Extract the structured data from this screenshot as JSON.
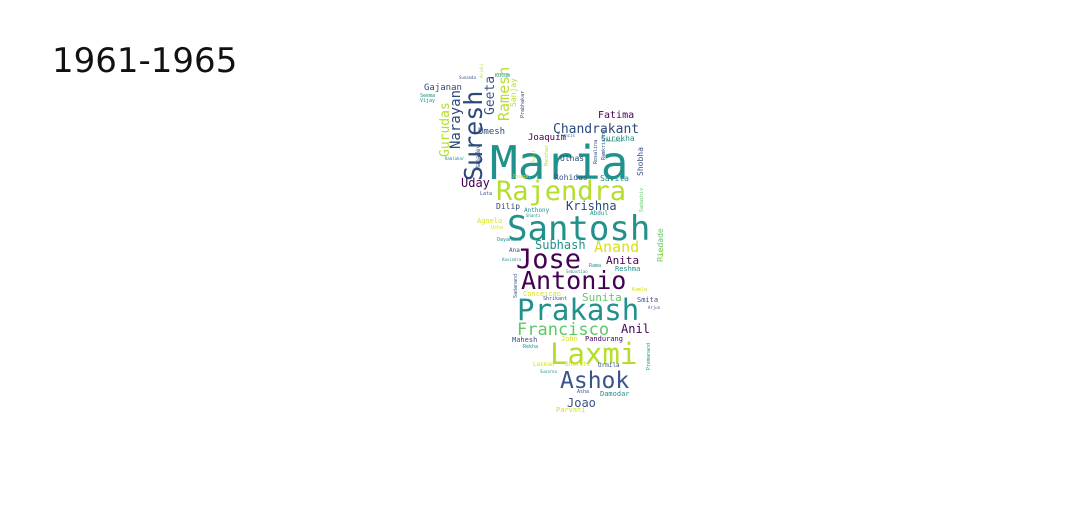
{
  "title": "1961-1965",
  "palette": {
    "teal": "#21918c",
    "blue": "#3b528b",
    "navy": "#2c4a7a",
    "purple": "#440154",
    "green": "#5ec962",
    "lime": "#b5de2b",
    "yellow": "#d8e219"
  },
  "words": [
    "Maria",
    "Santosh",
    "Rajendra",
    "Prakash",
    "Laxmi",
    "Antonio",
    "Jose",
    "Ashok",
    "Suresh",
    "Francisco",
    "Ramesh",
    "Chandrakant",
    "Anand",
    "Krishna",
    "Subhash",
    "Narayan",
    "Gurudas",
    "Geeta",
    "Joao",
    "Sunita",
    "Anil",
    "Anita",
    "Uday",
    "Fatima",
    "Gajanan",
    "Umesh",
    "Joaquim",
    "Surekha",
    "Ulhas",
    "Rohidas",
    "Savita",
    "Dilip",
    "Shobha",
    "Piedade",
    "Reshma",
    "Smita",
    "Pandurang",
    "Mahesh",
    "John",
    "Damodar",
    "Parvati",
    "Urmila",
    "Laxman",
    "Bharati",
    "Anthony",
    "Abdul",
    "Agnelo",
    "Dayanand",
    "Ana",
    "Sanjay",
    "Mahadev",
    "Conceicao",
    "Shrikant",
    "Premanand",
    "Asha",
    "Sunanda",
    "Seema",
    "Vijay",
    "Francis",
    "Rosario",
    "Prabhakar",
    "Suvarna",
    "Kavindra",
    "Lata",
    "Rama",
    "Usha",
    "Arjun",
    "Sadanand",
    "Sebastiao",
    "Rekha",
    "Sadashiv",
    "Kusum",
    "Anjali",
    "Rosalina",
    "Manohar",
    "Kamlakar",
    "Shanti",
    "Joseph",
    "Ramkrishna",
    "Sunil",
    "Anuja",
    "Kamla"
  ]
}
